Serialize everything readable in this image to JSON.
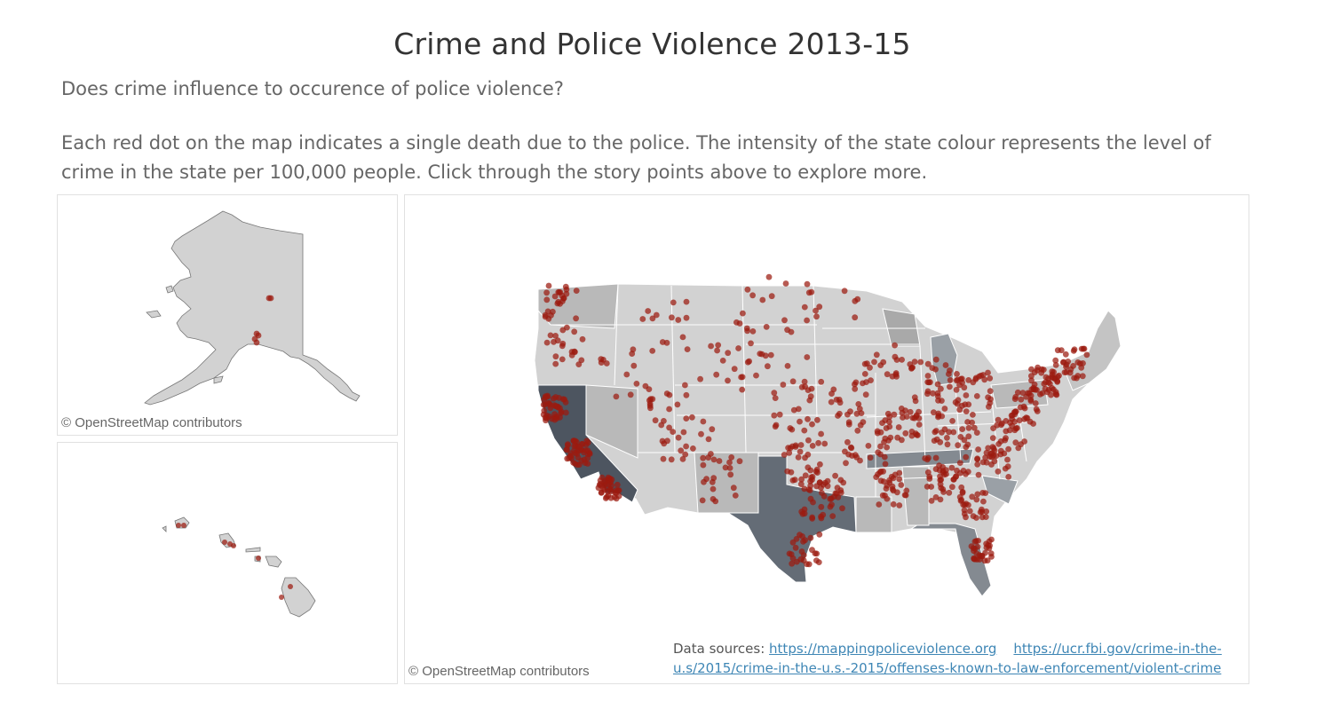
{
  "page": {
    "title": "Crime and Police Violence 2013-15",
    "question": "Does crime influence to occurence of police violence?",
    "description": "Each red dot on the map indicates a single death due to the police. The intensity of the state colour represents the level of crime in the state per 100,000 people. Click through the story points above to explore more."
  },
  "maps": {
    "attribution": "© OpenStreetMap contributors",
    "colors": {
      "state_base": "#d2d2d2",
      "state_mid": "#b9b9b9",
      "state_high": "#848a91",
      "state_highest": "#4d5560",
      "dot": "#9b1b0f"
    }
  },
  "sources": {
    "label": "Data sources:",
    "link1": "https://mappingpoliceviolence.org",
    "link2": "https://ucr.fbi.gov/crime-in-the-u.s/2015/crime-in-the-u.s.-2015/offenses-known-to-law-enforcement/violent-crime"
  }
}
